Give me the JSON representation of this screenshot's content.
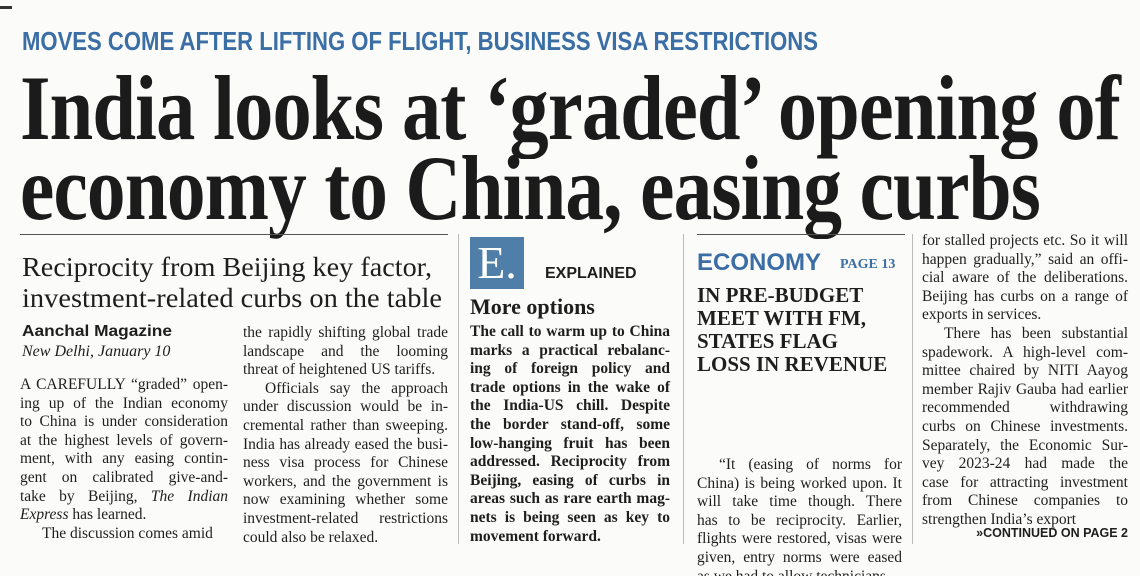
{
  "kicker": "MOVES COME AFTER LIFTING OF FLIGHT, BUSINESS VISA RESTRICTIONS",
  "headline": [
    "India looks at ‘graded’ opening of",
    "economy to China, easing curbs"
  ],
  "subheadline": [
    "Reciprocity from Beijing key factor,",
    "investment-related curbs on the table"
  ],
  "byline": {
    "author": "Aanchal Magazine",
    "dateline": "New Delhi, January 10"
  },
  "columns": [
    {
      "paragraphs": [
        [
          "A CAREFULLY “graded” open-",
          "ing up of the Indian economy",
          "to China is under consideration",
          "at the highest levels of govern-",
          "ment, with any easing contin-",
          "gent on calibrated give-and-",
          [
            "take by Beijing, ",
            "The Indian"
          ],
          [
            "",
            "Express",
            " has learned."
          ]
        ],
        [
          "The discussion comes amid"
        ]
      ]
    },
    {
      "paragraphs": [
        [
          "the rapidly shifting global trade",
          "landscape and the looming",
          "threat of heightened US tariffs."
        ],
        [
          "Officials say the approach",
          "under discussion would be in-",
          "cremental rather than sweeping.",
          "India has already eased the busi-",
          "ness visa process for Chinese",
          "workers, and the government is",
          "now examining whether some",
          "investment-related restrictions",
          "could also be relaxed."
        ]
      ]
    },
    {
      "paragraphs": [
        [
          "“It (easing of norms for",
          "China) is being worked upon. It",
          "will take time though. There",
          "has to be reciprocity. Earlier,",
          "flights were restored, visas were",
          "given, entry norms were eased",
          "as we had to allow technicians"
        ]
      ]
    },
    {
      "paragraphs": [
        [
          "for stalled projects etc. So it will",
          "happen gradually,” said an offi-",
          "cial aware of the deliberations.",
          "Beijing has curbs on a range of",
          "exports in services."
        ],
        [
          "There has been substantial",
          "spadework. A high-level com-",
          "mittee chaired by NITI Aayog",
          "member Rajiv Gauba had earlier",
          "recommended withdrawing",
          "curbs on Chinese investments.",
          "Separately, the Economic Sur-",
          "vey 2023-24 had made the",
          "case for attracting investment",
          "from Chinese companies to",
          "strengthen India’s export"
        ]
      ]
    }
  ],
  "explained": {
    "logo": "E.",
    "label": "EXPLAINED",
    "title": "More options",
    "lines": [
      "The call to warm up to China",
      "marks a practical rebalanc-",
      "ing of foreign policy and",
      "trade options in the wake of",
      "the India-US chill. Despite",
      "the border stand-off, some",
      "low-hanging fruit has been",
      "addressed. Reciprocity from",
      "Beijing, easing of curbs in",
      "areas such as rare earth mag-",
      "nets is being seen as key to",
      "movement forward."
    ]
  },
  "economy": {
    "section": "ECONOMY",
    "page": "PAGE 13",
    "headline": [
      "IN PRE-BUDGET",
      "MEET WITH FM,",
      "STATES FLAG",
      "LOSS IN REVENUE"
    ]
  },
  "continued": "»CONTINUED ON PAGE 2"
}
